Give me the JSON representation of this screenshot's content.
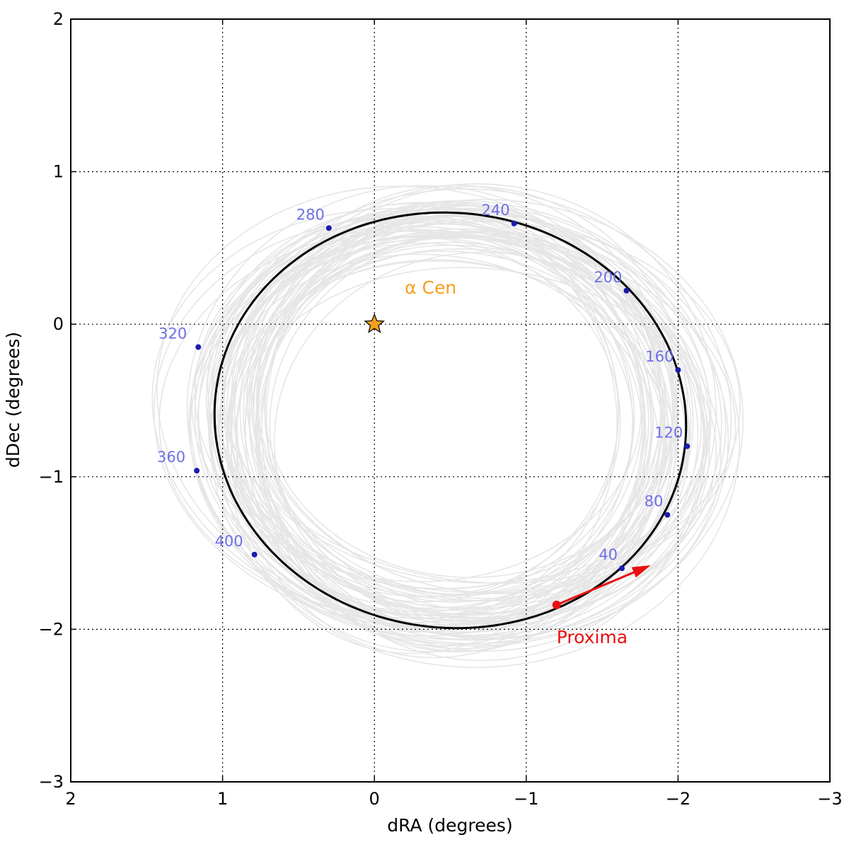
{
  "chart_data": {
    "type": "line",
    "xlabel": "dRA (degrees)",
    "ylabel": "dDec (degrees)",
    "xlim": [
      2,
      -3
    ],
    "ylim": [
      -3,
      2
    ],
    "xticks": [
      2,
      1,
      0,
      -1,
      -2,
      -3
    ],
    "yticks": [
      -3,
      -2,
      -1,
      0,
      1,
      2
    ],
    "grid": true,
    "colors": {
      "orbit": "#000000",
      "sample_orbits": "#e6e6e6",
      "epoch_points": "#1a1ab0",
      "epoch_labels": "#6f6fe8",
      "alpha_cen": "#f5a020",
      "proxima": "#e81010"
    },
    "orbit_ellipse": {
      "center": [
        -0.5,
        -0.63
      ],
      "semi_axis_ra": 1.555,
      "semi_axis_dec": 1.36,
      "tilt_deg": 6
    },
    "epoch_points": [
      {
        "label": "40",
        "x": -1.63,
        "y": -1.6
      },
      {
        "label": "80",
        "x": -1.93,
        "y": -1.25
      },
      {
        "label": "120",
        "x": -2.06,
        "y": -0.8
      },
      {
        "label": "160",
        "x": -2.0,
        "y": -0.3
      },
      {
        "label": "200",
        "x": -1.66,
        "y": 0.22
      },
      {
        "label": "240",
        "x": -0.92,
        "y": 0.66
      },
      {
        "label": "280",
        "x": 0.3,
        "y": 0.63
      },
      {
        "label": "320",
        "x": 1.16,
        "y": -0.15
      },
      {
        "label": "360",
        "x": 1.17,
        "y": -0.96
      },
      {
        "label": "400",
        "x": 0.79,
        "y": -1.51
      }
    ],
    "annotations": {
      "alpha_cen": {
        "label": "α Cen",
        "x": 0,
        "y": 0
      },
      "proxima": {
        "label": "Proxima",
        "x": -1.2,
        "y": -1.84,
        "velocity_tip": [
          -1.82,
          -1.58
        ]
      }
    }
  }
}
